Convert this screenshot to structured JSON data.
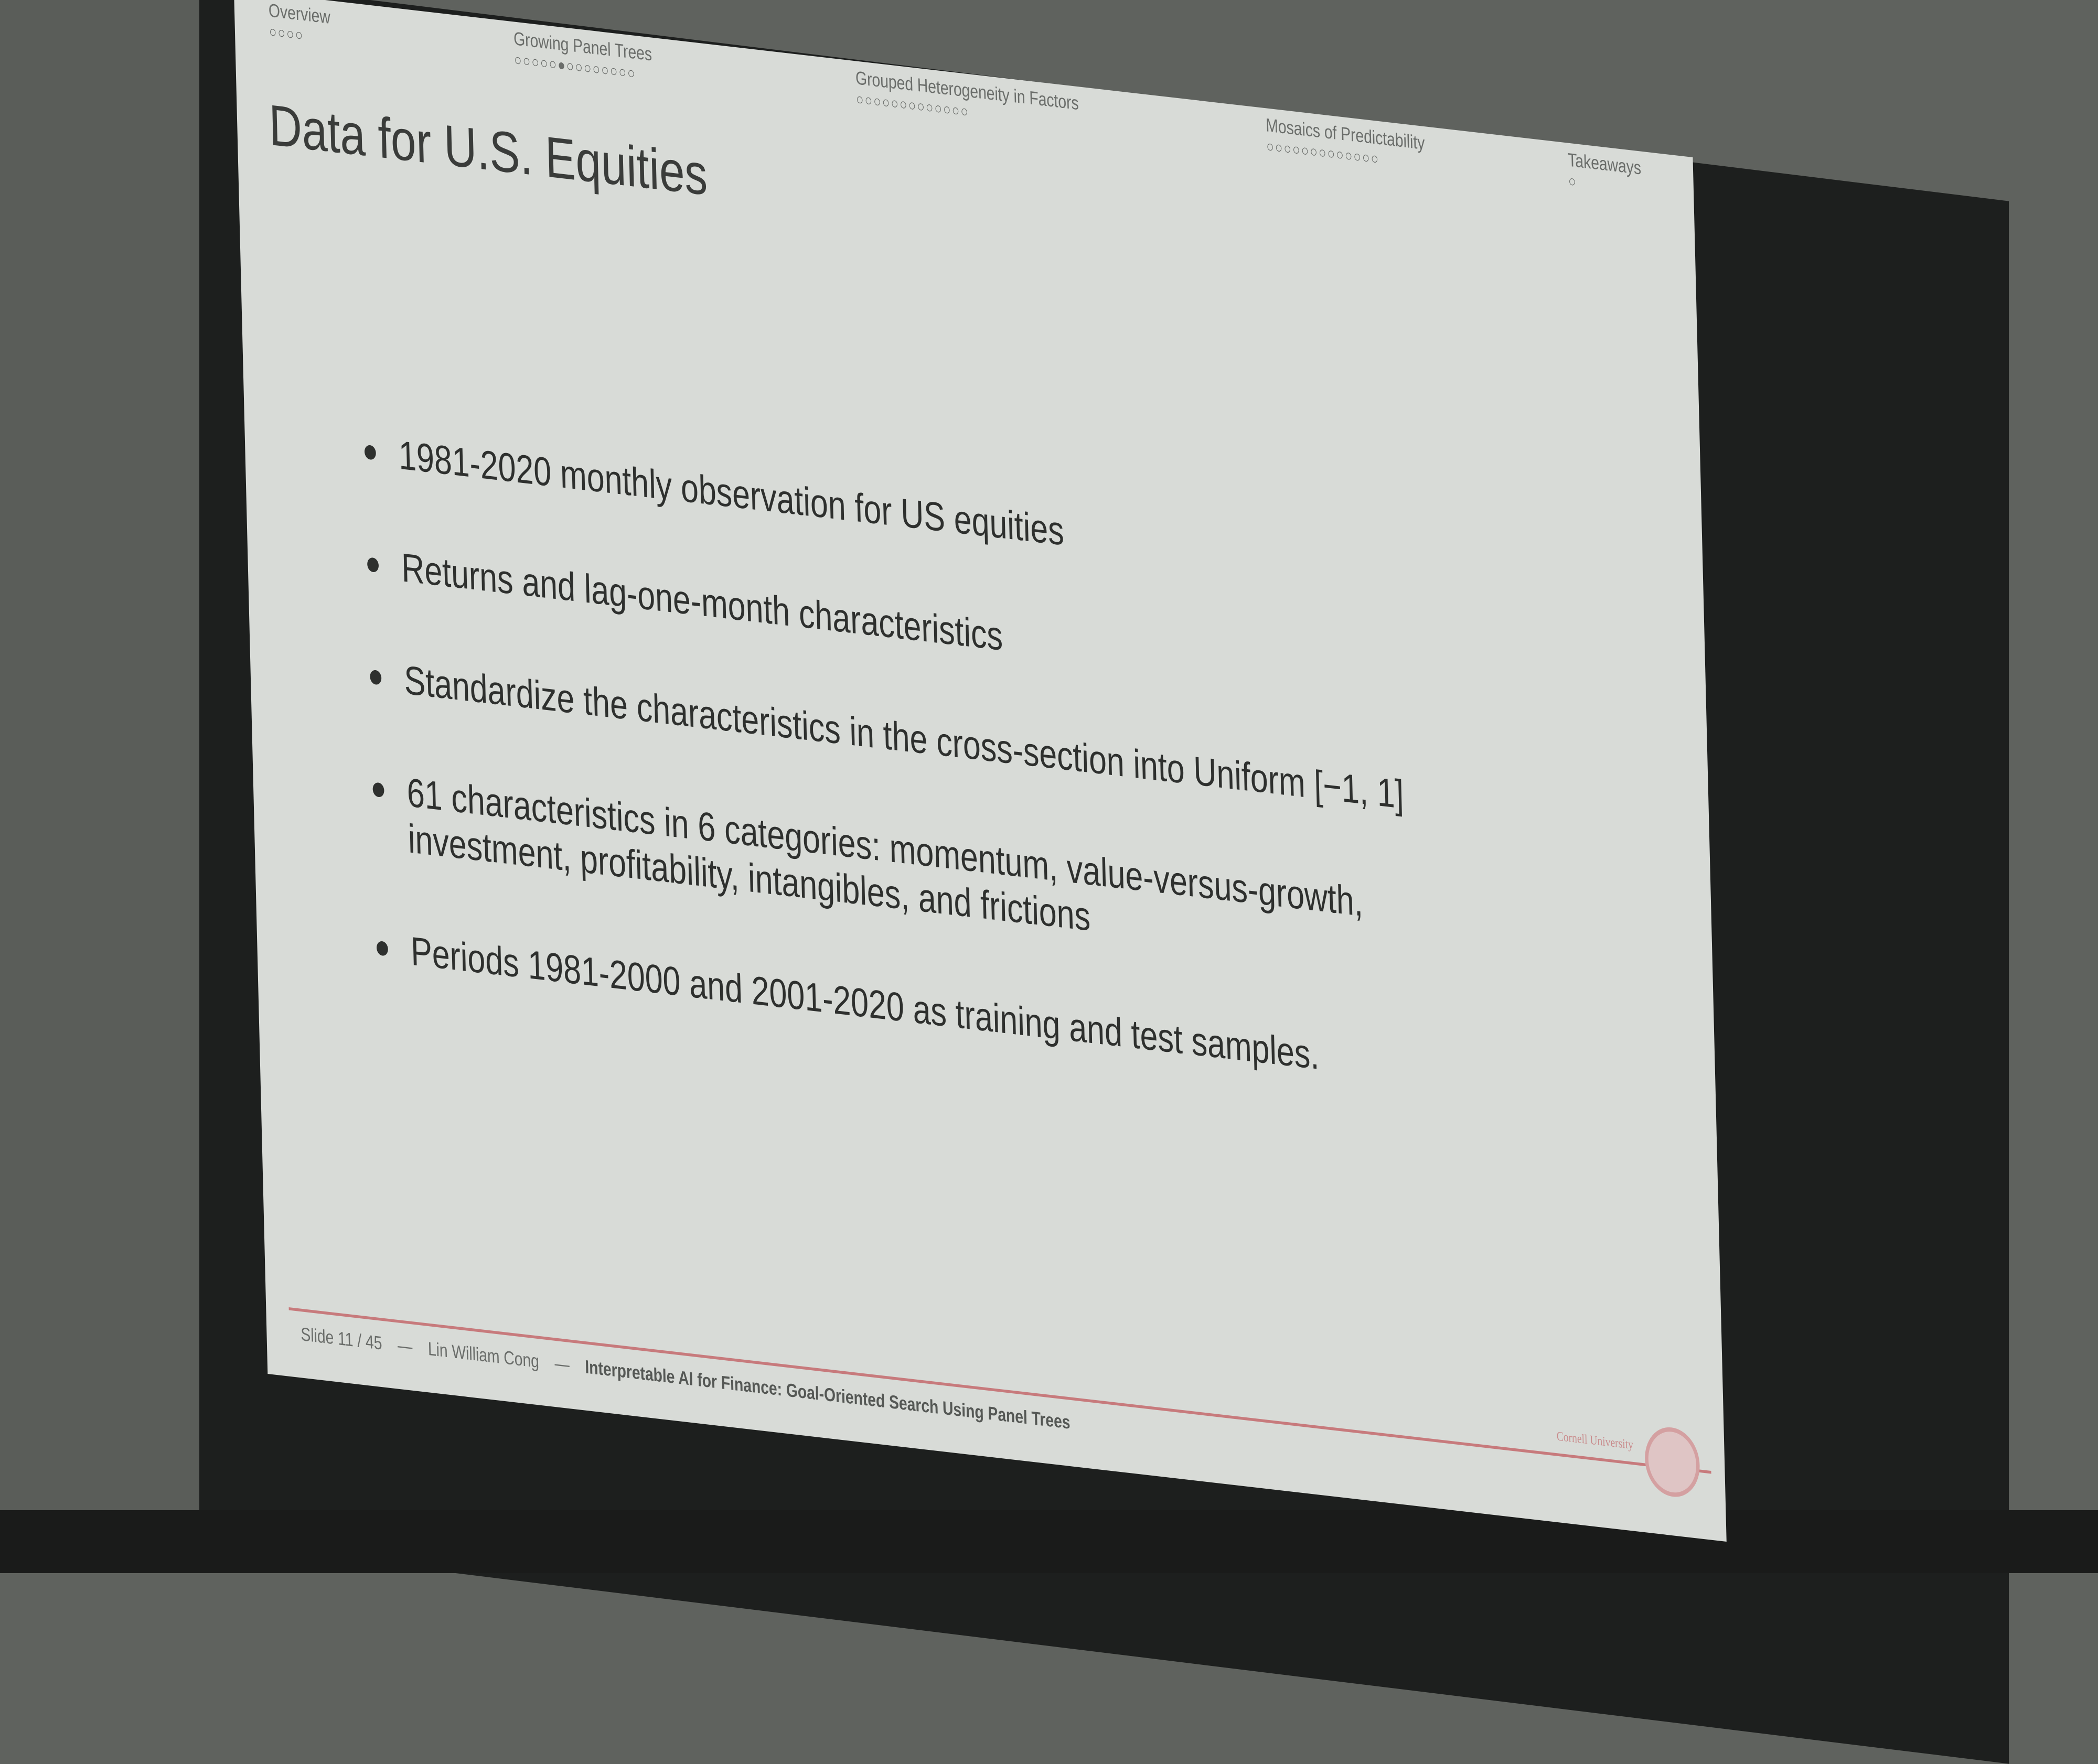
{
  "navigation": [
    {
      "label": "Overview"
    },
    {
      "label": "Growing Panel Trees"
    },
    {
      "label": "Grouped Heterogeneity in Factors"
    },
    {
      "label": "Mosaics of Predictability"
    },
    {
      "label": "Takeaways"
    }
  ],
  "title": "Data for U.S. Equities",
  "bullets": [
    "1981-2020 monthly observation for US equities",
    "Returns and lag-one-month characteristics",
    "Standardize the characteristics in the cross-section into Uniform [−1, 1]",
    "61 characteristics in 6 categories: momentum, value-versus-growth, investment, profitability, intangibles, and frictions",
    "Periods 1981-2000 and 2001-2020 as training and test samples."
  ],
  "footer": {
    "slide": "Slide 11 / 45",
    "separator": "—",
    "author": "Lin William Cong",
    "talk_title": "Interpretable AI for Finance: Goal-Oriented Search Using Panel Trees",
    "institution": "Cornell University"
  }
}
